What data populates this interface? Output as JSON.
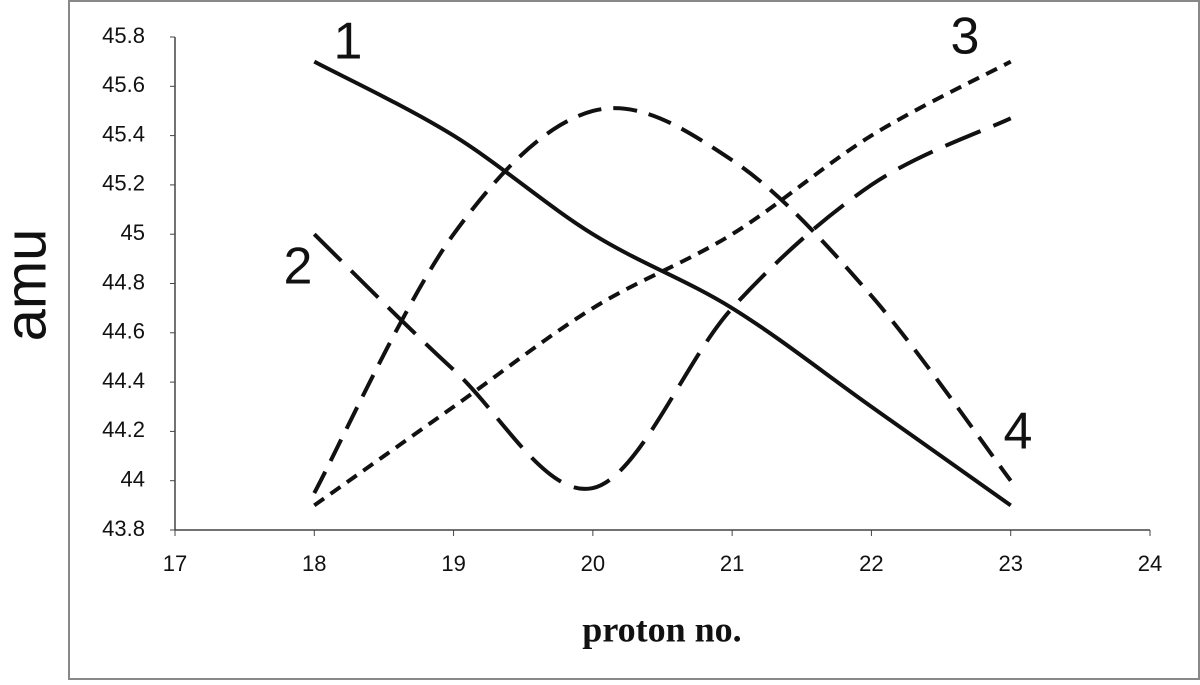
{
  "chart_data": {
    "type": "line",
    "x_label": "proton no.",
    "y_label": "amu",
    "x": [
      18,
      19,
      20,
      21,
      22,
      23
    ],
    "series": [
      {
        "name": "1",
        "color": "#111111",
        "style": "solid",
        "values": [
          45.7,
          45.4,
          45.0,
          44.7,
          44.3,
          43.9
        ]
      },
      {
        "name": "2",
        "color": "#111111",
        "style": "long-dash",
        "values": [
          45.0,
          44.45,
          43.97,
          44.7,
          45.2,
          45.47
        ]
      },
      {
        "name": "3",
        "color": "#111111",
        "style": "short-dash",
        "values": [
          43.9,
          44.3,
          44.7,
          45.0,
          45.4,
          45.7
        ]
      },
      {
        "name": "4",
        "color": "#111111",
        "style": "medium-dash",
        "values": [
          43.95,
          45.0,
          45.5,
          45.3,
          44.75,
          44.0
        ]
      }
    ],
    "xlim": [
      17,
      24
    ],
    "xticks": [
      17,
      18,
      19,
      20,
      21,
      22,
      23,
      24
    ],
    "ylim": [
      43.8,
      45.8
    ],
    "yticks": [
      43.8,
      44,
      44.2,
      44.4,
      44.6,
      44.8,
      45,
      45.2,
      45.4,
      45.6,
      45.8
    ]
  }
}
